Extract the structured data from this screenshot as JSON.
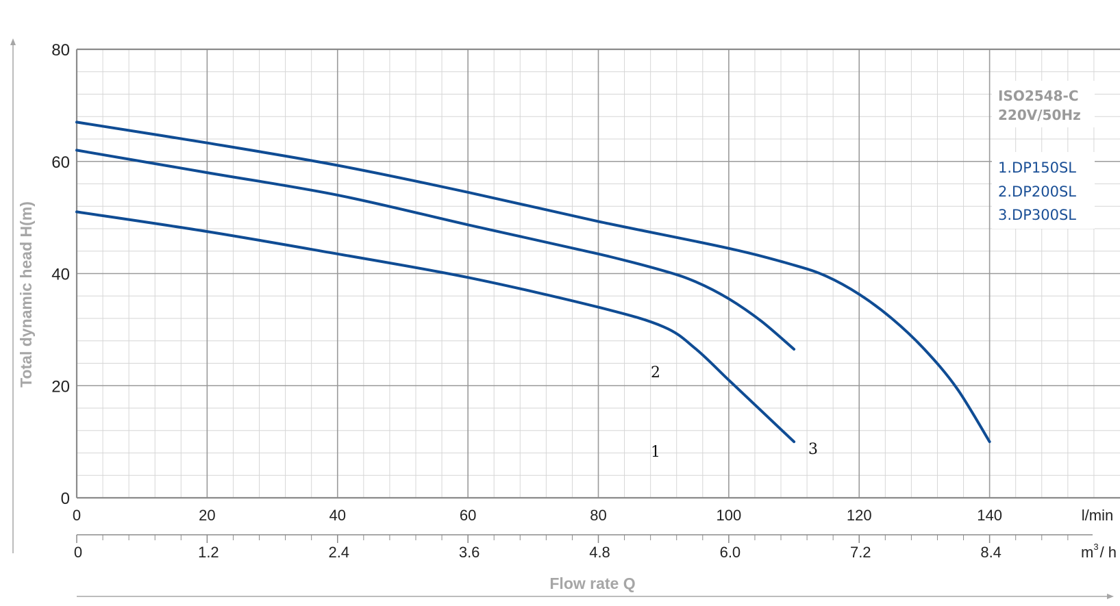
{
  "chart_data": {
    "type": "line",
    "xlabel": "Flow rate Q",
    "ylabel": "Total dynamic head H(m)",
    "xlim": [
      0,
      160
    ],
    "ylim": [
      0,
      80
    ],
    "x_unit_primary": "l/min",
    "x_unit_secondary_base": "m",
    "x_unit_secondary_sup": "3",
    "x_unit_secondary_tail": "/ h",
    "x_ticks_primary": [
      "0",
      "20",
      "40",
      "60",
      "80",
      "100",
      "120",
      "140"
    ],
    "x_ticks_secondary": [
      "0",
      "1.2",
      "2.4",
      "3.6",
      "4.8",
      "6.0",
      "7.2",
      "8.4"
    ],
    "y_ticks": [
      "0",
      "20",
      "40",
      "60",
      "80"
    ],
    "grid": true,
    "info_lines": [
      "ISO2548-C",
      "220V/50Hz"
    ],
    "legend": [
      "1.DP150SL",
      "2.DP200SL",
      "3.DP300SL"
    ],
    "curve_labels": [
      "2",
      "1",
      "3"
    ],
    "series": [
      {
        "x": [
          0,
          20,
          40,
          60,
          80,
          90,
          95,
          100,
          105,
          110
        ],
        "y": [
          51,
          47.5,
          43.5,
          39.3,
          34,
          30.5,
          26.5,
          21,
          15.5,
          10
        ]
      },
      {
        "x": [
          0,
          20,
          40,
          60,
          80,
          90,
          95,
          100,
          105,
          110
        ],
        "y": [
          62,
          58,
          54,
          48.7,
          43.5,
          40.5,
          38.5,
          35.5,
          31.5,
          26.5
        ]
      },
      {
        "x": [
          0,
          20,
          40,
          60,
          80,
          100,
          110,
          115,
          120,
          125,
          130,
          135,
          140
        ],
        "y": [
          67,
          63.3,
          59.3,
          54.5,
          49.3,
          44.5,
          41.5,
          39.5,
          36.3,
          32,
          26.5,
          19.5,
          10
        ]
      }
    ],
    "colors": {
      "series": "#0f4c94",
      "grid_major": "#9a9a9a",
      "grid_minor": "#d6d6d6"
    }
  }
}
